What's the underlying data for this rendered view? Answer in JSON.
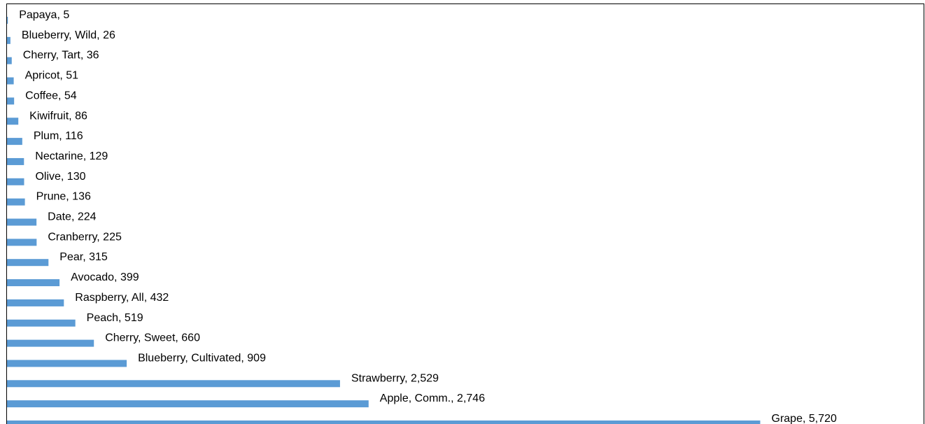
{
  "chart_data": {
    "type": "bar",
    "orientation": "horizontal",
    "categories": [
      "Papaya",
      "Blueberry, Wild",
      "Cherry, Tart",
      "Apricot",
      "Coffee",
      "Kiwifruit",
      "Plum",
      "Nectarine",
      "Olive",
      "Prune",
      "Date",
      "Cranberry",
      "Pear",
      "Avocado",
      "Raspberry, All",
      "Peach",
      "Cherry, Sweet",
      "Blueberry, Cultivated",
      "Strawberry",
      "Apple, Comm.",
      "Grape"
    ],
    "values": [
      5,
      26,
      36,
      51,
      54,
      86,
      116,
      129,
      130,
      136,
      224,
      225,
      315,
      399,
      432,
      519,
      660,
      909,
      2529,
      2746,
      5720
    ],
    "data_labels": [
      "Papaya, 5",
      "Blueberry, Wild, 26",
      "Cherry, Tart, 36",
      "Apricot, 51",
      "Coffee, 54",
      "Kiwifruit, 86",
      "Plum, 116",
      "Nectarine, 129",
      "Olive, 130",
      "Prune, 136",
      "Date, 224",
      "Cranberry, 225",
      "Pear, 315",
      "Avocado, 399",
      "Raspberry, All, 432",
      "Peach, 519",
      "Cherry, Sweet, 660",
      "Blueberry, Cultivated, 909",
      "Strawberry, 2,529",
      "Apple, Comm., 2,746",
      "Grape, 5,720"
    ],
    "bar_color": "#5b9bd5",
    "grid": false,
    "legend": "none"
  }
}
